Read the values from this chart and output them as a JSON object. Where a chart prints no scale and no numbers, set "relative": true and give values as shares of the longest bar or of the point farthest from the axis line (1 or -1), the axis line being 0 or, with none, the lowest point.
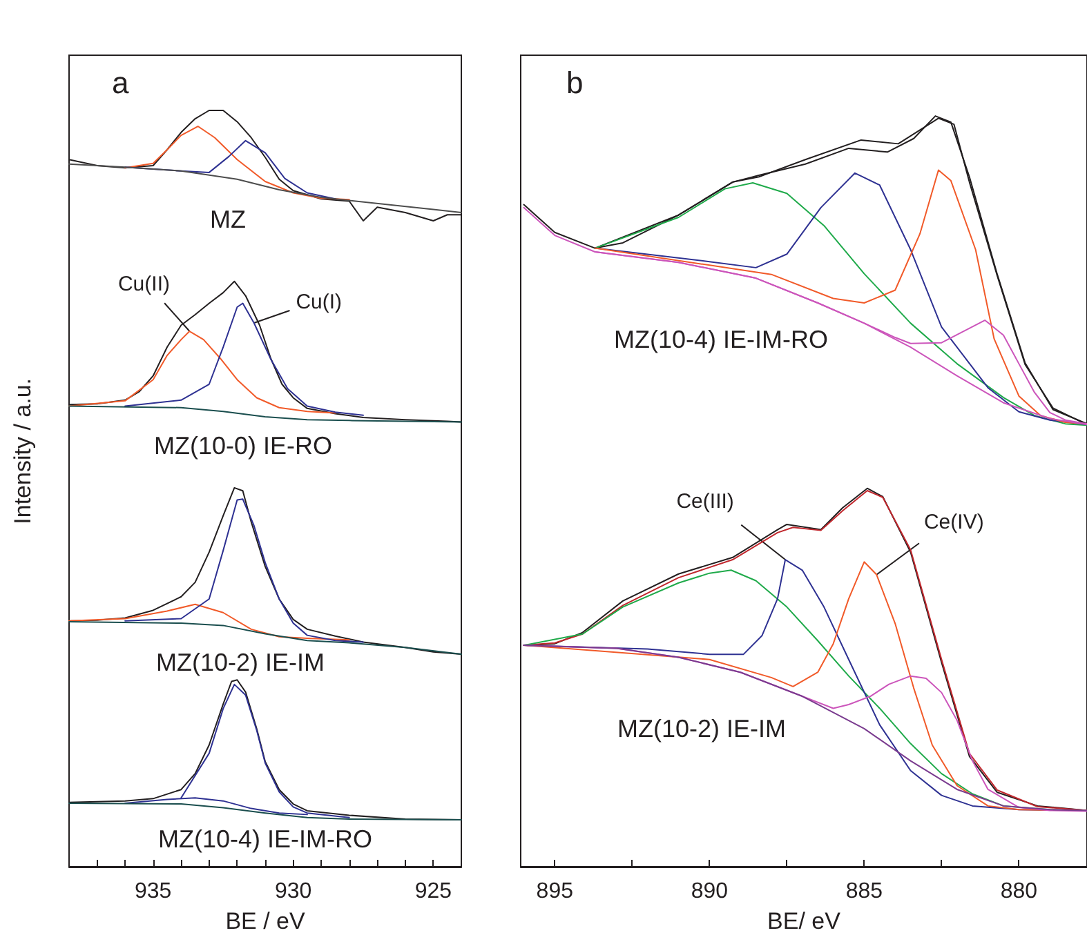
{
  "chart_data": [
    {
      "type": "line",
      "title": "a",
      "xlabel": "BE / eV",
      "ylabel": "Intensity / a.u.",
      "relative": true,
      "xlim": [
        938,
        924
      ],
      "xticks": [
        {
          "value": 937,
          "label": null
        },
        {
          "value": 936,
          "label": null
        },
        935,
        {
          "value": 934,
          "label": null
        },
        {
          "value": 933,
          "label": null
        },
        {
          "value": 932,
          "label": null
        },
        {
          "value": 931,
          "label": null
        },
        930,
        {
          "value": 929,
          "label": null
        },
        {
          "value": 928,
          "label": null
        },
        {
          "value": 927,
          "label": null
        },
        {
          "value": 926,
          "label": null
        },
        925
      ],
      "series": [
        {
          "color": "#231f20",
          "x": [
            938,
            937,
            936,
            935,
            934.5,
            934,
            933.5,
            933,
            932.5,
            932,
            931.5,
            931,
            930.5,
            930,
            929,
            928,
            927.5,
            927,
            926,
            925,
            924.5,
            924
          ],
          "values": [
            0.935,
            0.927,
            0.924,
            0.927,
            0.948,
            0.971,
            0.989,
            1,
            1,
            0.985,
            0.964,
            0.938,
            0.909,
            0.894,
            0.883,
            0.88,
            0.854,
            0.872,
            0.865,
            0.854,
            0.862,
            0.862
          ]
        },
        {
          "color": "#f15a29",
          "x": [
            936,
            935,
            934.5,
            934,
            933.4,
            932.8,
            932,
            931,
            930,
            929,
            928
          ],
          "values": [
            0.924,
            0.93,
            0.948,
            0.967,
            0.979,
            0.964,
            0.935,
            0.906,
            0.891,
            0.884,
            0.882
          ]
        },
        {
          "color": "#2e3192",
          "x": [
            936,
            934,
            933,
            932.3,
            931.7,
            931,
            930.3,
            929.5,
            928.5
          ],
          "values": [
            0.925,
            0.92,
            0.918,
            0.939,
            0.96,
            0.944,
            0.91,
            0.891,
            0.883
          ]
        },
        {
          "color": "#4d4d4d",
          "x": [
            938,
            936,
            934,
            932,
            930.5,
            929,
            928,
            925,
            924
          ],
          "values": [
            0.929,
            0.925,
            0.92,
            0.909,
            0.895,
            0.885,
            0.881,
            0.869,
            0.865
          ]
        },
        {
          "color": "#231f20",
          "x": [
            938,
            937,
            936,
            935.5,
            935,
            934.5,
            934,
            933.5,
            933,
            932.5,
            932.1,
            931.7,
            931.2,
            930.8,
            930.4,
            930,
            929.5,
            928.5,
            927.5,
            926,
            924.5,
            924
          ],
          "values": [
            0.611,
            0.612,
            0.617,
            0.628,
            0.649,
            0.687,
            0.716,
            0.73,
            0.745,
            0.759,
            0.774,
            0.755,
            0.716,
            0.672,
            0.638,
            0.62,
            0.606,
            0.599,
            0.594,
            0.591,
            0.589,
            0.588
          ]
        },
        {
          "color": "#f15a29",
          "x": [
            938,
            936,
            935,
            934.5,
            934,
            933.7,
            933.2,
            932.6,
            932,
            931.3,
            930.5,
            929.5,
            928.5
          ],
          "values": [
            0.609,
            0.616,
            0.644,
            0.676,
            0.697,
            0.708,
            0.697,
            0.672,
            0.644,
            0.62,
            0.607,
            0.602,
            0.6
          ]
        },
        {
          "color": "#2e3192",
          "x": [
            936,
            934,
            933,
            932.5,
            932,
            931.8,
            931.4,
            930.8,
            930.2,
            929.5,
            928.5,
            927.5
          ],
          "values": [
            0.609,
            0.617,
            0.638,
            0.687,
            0.74,
            0.745,
            0.719,
            0.671,
            0.632,
            0.609,
            0.601,
            0.597
          ]
        },
        {
          "color": "#1a4e4e",
          "x": [
            938,
            934,
            932.5,
            931,
            929.5,
            928,
            924
          ],
          "values": [
            0.609,
            0.607,
            0.602,
            0.595,
            0.591,
            0.59,
            0.588
          ]
        },
        {
          "color": "#231f20",
          "x": [
            938,
            937,
            936,
            935,
            934,
            933.5,
            933,
            932.5,
            932.1,
            931.8,
            931.5,
            931,
            930.5,
            930,
            929.5,
            928.5,
            927.5,
            926,
            925,
            924
          ],
          "values": [
            0.325,
            0.326,
            0.329,
            0.339,
            0.357,
            0.376,
            0.416,
            0.464,
            0.501,
            0.497,
            0.456,
            0.397,
            0.354,
            0.327,
            0.314,
            0.305,
            0.297,
            0.29,
            0.284,
            0.281
          ]
        },
        {
          "color": "#f15a29",
          "x": [
            938,
            936,
            934.5,
            933.5,
            932.5,
            931.5,
            930.5,
            929.5,
            928
          ],
          "values": [
            0.325,
            0.328,
            0.338,
            0.347,
            0.336,
            0.314,
            0.304,
            0.302,
            0.3
          ]
        },
        {
          "color": "#2e3192",
          "x": [
            936,
            934,
            933,
            932.5,
            932,
            931.8,
            931.4,
            931,
            930.5,
            930,
            929.5,
            928.5,
            927.5
          ],
          "values": [
            0.325,
            0.328,
            0.354,
            0.418,
            0.485,
            0.486,
            0.451,
            0.402,
            0.354,
            0.322,
            0.306,
            0.299,
            0.297
          ]
        },
        {
          "color": "#1a4e4e",
          "x": [
            938,
            934,
            932.5,
            931,
            929.5,
            928,
            926,
            924
          ],
          "values": [
            0.324,
            0.322,
            0.319,
            0.308,
            0.299,
            0.296,
            0.29,
            0.281
          ]
        },
        {
          "color": "#231f20",
          "x": [
            938,
            936,
            935,
            934,
            933.5,
            933,
            932.5,
            932.2,
            932,
            931.7,
            931.3,
            931,
            930.5,
            930,
            929.5,
            928,
            926,
            924
          ],
          "values": [
            0.085,
            0.087,
            0.09,
            0.102,
            0.123,
            0.161,
            0.215,
            0.245,
            0.247,
            0.231,
            0.182,
            0.139,
            0.102,
            0.083,
            0.074,
            0.068,
            0.063,
            0.062
          ]
        },
        {
          "color": "#2e3192",
          "x": [
            934,
            933,
            932.5,
            932.1,
            931.7,
            931.3,
            931,
            930.5,
            930,
            929.5,
            928
          ],
          "values": [
            0.091,
            0.15,
            0.209,
            0.241,
            0.227,
            0.18,
            0.137,
            0.099,
            0.079,
            0.071,
            0.065
          ]
        },
        {
          "color": "#2e3192",
          "x": [
            936,
            934.5,
            933.5,
            932.5,
            931.5,
            930.5,
            929.5
          ],
          "values": [
            0.084,
            0.089,
            0.091,
            0.087,
            0.077,
            0.071,
            0.069
          ]
        },
        {
          "color": "#1a4e4e",
          "x": [
            938,
            934,
            932.5,
            931,
            929.5,
            928,
            924
          ],
          "values": [
            0.084,
            0.083,
            0.078,
            0.071,
            0.065,
            0.063,
            0.062
          ]
        }
      ],
      "annotations": [
        "MZ",
        {
          "text": "Cu(II)",
          "x": 933.7,
          "y": 0.708
        },
        {
          "text": "Cu(I)",
          "x": 931.4,
          "y": 0.719
        },
        "MZ(10-0) IE-RO",
        "MZ(10-2) IE-IM",
        "MZ(10-4) IE-IM-RO"
      ]
    },
    {
      "type": "line",
      "title": "b",
      "xlabel": "BE/ eV",
      "relative": true,
      "xlim": [
        896.1,
        877.8
      ],
      "xticks": [
        895,
        {
          "value": 892.5,
          "label": null
        },
        890,
        {
          "value": 887.5,
          "label": null
        },
        885,
        {
          "value": 882.5,
          "label": null
        },
        880
      ],
      "series": [
        {
          "color": "#231f20",
          "x": [
            896,
            895,
            893.7,
            892.8,
            891,
            889.25,
            888.4,
            886.9,
            885.1,
            883.9,
            882.6,
            882.1,
            881.6,
            880.7,
            879.8,
            878.9,
            877.8
          ],
          "values": [
            0.882,
            0.845,
            0.824,
            0.831,
            0.868,
            0.912,
            0.919,
            0.942,
            0.968,
            0.963,
            0.997,
            0.989,
            0.912,
            0.787,
            0.669,
            0.611,
            0.589
          ]
        },
        {
          "color": "#231f20",
          "x": [
            893.7,
            891,
            889.25,
            888.4,
            886.9,
            885.5,
            884.25,
            883.4,
            882.7,
            882.2,
            881.6,
            880.7,
            879.8,
            878.9,
            877.8
          ],
          "values": [
            0.824,
            0.868,
            0.912,
            0.921,
            0.936,
            0.957,
            0.952,
            0.97,
            1,
            0.992,
            0.919,
            0.789,
            0.671,
            0.609,
            0.59
          ]
        },
        {
          "color": "#1faa4a",
          "x": [
            893.7,
            891,
            889.5,
            888.6,
            887.5,
            886.3,
            885,
            883.5,
            882,
            880.5,
            879.5,
            878.5,
            877.8
          ],
          "values": [
            0.824,
            0.865,
            0.903,
            0.911,
            0.897,
            0.854,
            0.79,
            0.724,
            0.67,
            0.625,
            0.601,
            0.59,
            0.588
          ]
        },
        {
          "color": "#2e3192",
          "x": [
            893.7,
            890,
            888.5,
            887.5,
            886.4,
            885.3,
            884.5,
            883.5,
            882.5,
            881,
            880,
            879,
            877.8
          ],
          "values": [
            0.824,
            0.806,
            0.798,
            0.816,
            0.878,
            0.924,
            0.908,
            0.822,
            0.719,
            0.638,
            0.606,
            0.595,
            0.589
          ]
        },
        {
          "color": "#f15a29",
          "x": [
            893.7,
            888,
            886,
            885,
            884,
            883.2,
            882.6,
            882.2,
            881.4,
            880.8,
            880,
            879.3,
            878.5,
            877.8
          ],
          "values": [
            0.824,
            0.789,
            0.757,
            0.751,
            0.768,
            0.843,
            0.928,
            0.914,
            0.822,
            0.703,
            0.627,
            0.601,
            0.592,
            0.59
          ]
        },
        {
          "color": "#cc55bb",
          "x": [
            893.7,
            891,
            888.5,
            886.5,
            885,
            884,
            883.5,
            882.5,
            881.1,
            880.5,
            880,
            879.5,
            879,
            878.5,
            877.8
          ],
          "values": [
            0.819,
            0.805,
            0.784,
            0.751,
            0.724,
            0.705,
            0.697,
            0.698,
            0.728,
            0.708,
            0.67,
            0.632,
            0.605,
            0.595,
            0.59
          ]
        },
        {
          "color": "#cc55bb",
          "x": [
            896,
            895,
            893.7,
            891,
            888.5,
            886.5,
            885,
            883.5,
            882,
            880.5,
            879,
            877.8
          ],
          "values": [
            0.878,
            0.841,
            0.819,
            0.805,
            0.784,
            0.751,
            0.724,
            0.692,
            0.654,
            0.618,
            0.597,
            0.589
          ]
        },
        {
          "color": "#231f20",
          "x": [
            896,
            895,
            894.1,
            892.8,
            891,
            889.25,
            887.8,
            887.5,
            886.4,
            885.7,
            884.9,
            884.4,
            883.5,
            882.5,
            881.6,
            880.7,
            879.4,
            877.8
          ],
          "values": [
            0.295,
            0.297,
            0.312,
            0.354,
            0.39,
            0.412,
            0.449,
            0.456,
            0.449,
            0.478,
            0.504,
            0.493,
            0.419,
            0.272,
            0.147,
            0.099,
            0.081,
            0.075
          ]
        },
        {
          "color": "#c1272d",
          "x": [
            896,
            895,
            894.1,
            892.8,
            891,
            889.25,
            887.8,
            887.3,
            886.4,
            885.7,
            884.9,
            884.4,
            883.5,
            882.5,
            881.6,
            880.7,
            879.4,
            877.8
          ],
          "values": [
            0.295,
            0.298,
            0.31,
            0.348,
            0.385,
            0.409,
            0.445,
            0.452,
            0.448,
            0.474,
            0.501,
            0.492,
            0.422,
            0.276,
            0.151,
            0.102,
            0.08,
            0.075
          ]
        },
        {
          "color": "#1faa4a",
          "x": [
            896,
            894.1,
            892.8,
            891,
            890,
            889.3,
            888.5,
            887.5,
            886.5,
            885.5,
            884.5,
            883.5,
            882.5,
            881.5,
            880.5,
            879,
            877.8
          ],
          "values": [
            0.295,
            0.31,
            0.346,
            0.378,
            0.391,
            0.395,
            0.381,
            0.346,
            0.301,
            0.254,
            0.211,
            0.164,
            0.124,
            0.097,
            0.081,
            0.076,
            0.075
          ]
        },
        {
          "color": "#2e3192",
          "x": [
            896,
            892,
            890,
            888.9,
            888.3,
            887.8,
            887.55,
            887,
            886.3,
            885.5,
            884.5,
            883.5,
            882.5,
            881.5,
            880,
            877.8
          ],
          "values": [
            0.295,
            0.29,
            0.283,
            0.283,
            0.308,
            0.357,
            0.409,
            0.395,
            0.346,
            0.276,
            0.189,
            0.128,
            0.095,
            0.081,
            0.076,
            0.075
          ]
        },
        {
          "color": "#f15a29",
          "x": [
            896,
            890,
            888,
            887.3,
            886.5,
            886,
            885.5,
            885,
            884.6,
            884,
            883.4,
            882.8,
            882,
            881,
            880,
            877.8
          ],
          "values": [
            0.295,
            0.276,
            0.252,
            0.24,
            0.259,
            0.297,
            0.357,
            0.406,
            0.389,
            0.324,
            0.238,
            0.162,
            0.108,
            0.081,
            0.076,
            0.075
          ]
        },
        {
          "color": "#cc55bb",
          "x": [
            896,
            893,
            891,
            889,
            887,
            886,
            885.5,
            884.8,
            884.2,
            883.5,
            883,
            882.5,
            882,
            881.5,
            881,
            880,
            879,
            877.8
          ],
          "values": [
            0.295,
            0.291,
            0.279,
            0.259,
            0.227,
            0.211,
            0.216,
            0.227,
            0.243,
            0.254,
            0.251,
            0.232,
            0.195,
            0.141,
            0.103,
            0.079,
            0.075,
            0.074
          ]
        },
        {
          "color": "#7a3b8f",
          "x": [
            896,
            893,
            891,
            889,
            887,
            885,
            883.5,
            882,
            880.5,
            879,
            877.8
          ],
          "values": [
            0.295,
            0.291,
            0.279,
            0.259,
            0.227,
            0.184,
            0.141,
            0.103,
            0.081,
            0.076,
            0.075
          ]
        }
      ],
      "annotations": [
        "MZ(10-4) IE-IM-RO",
        {
          "text": "Ce(III)",
          "x": 887.55,
          "y": 0.409
        },
        {
          "text": "Ce(IV)",
          "x": 884.6,
          "y": 0.389
        },
        "MZ(10-2) IE-IM"
      ]
    }
  ]
}
